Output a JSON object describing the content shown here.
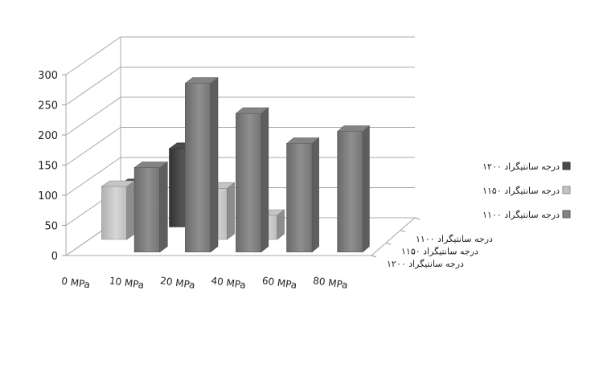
{
  "chart_data": {
    "type": "bar",
    "categories": [
      "0 MPa",
      "10 MPa",
      "20 MPa",
      "40 MPa",
      "60 MPa",
      "80 MPa"
    ],
    "series": [
      {
        "name": "۱۲۰۰ درجه سانتیگراد",
        "values": [
          70,
          130,
          null,
          null,
          null,
          null
        ],
        "color": "#4a4a4a"
      },
      {
        "name": "۱۱۵۰ درجه سانتیگراد",
        "values": [
          88,
          null,
          85,
          40,
          null,
          null
        ],
        "color": "#c4c4c4"
      },
      {
        "name": "۱۱۰۰ درجه سانتیگراد",
        "values": [
          null,
          140,
          280,
          230,
          180,
          200
        ],
        "color": "#838383"
      }
    ],
    "depth_labels": [
      "۱۱۰۰ درجه سانتیگراد",
      "۱۱۵۰ درجه سانتیگراد",
      "۱۲۰۰ درجه سانتیگراد"
    ],
    "yticks": [
      "0",
      "50",
      "100",
      "150",
      "200",
      "250",
      "300"
    ],
    "ylim": [
      0,
      300
    ],
    "grid": true,
    "legend_position": "right",
    "title": "",
    "xlabel": "",
    "ylabel": ""
  }
}
